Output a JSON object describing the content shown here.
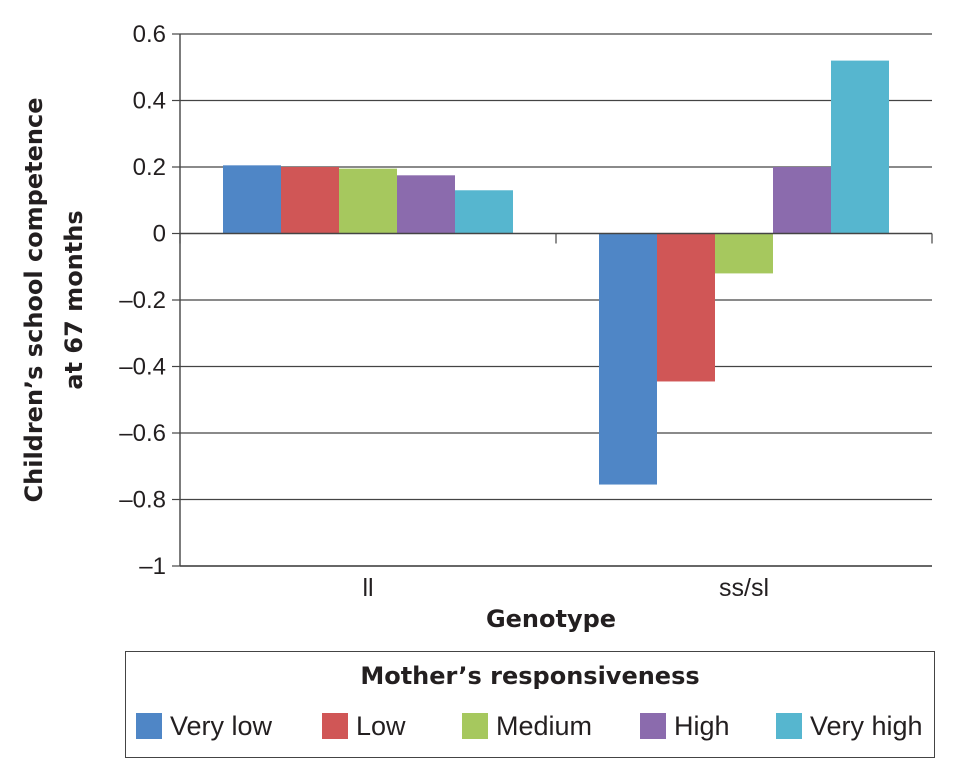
{
  "chart_data": {
    "type": "bar",
    "title": "",
    "xlabel": "Genotype",
    "ylabel_lines": [
      "Children’s school competence",
      "at 67 months"
    ],
    "categories": [
      "ll",
      "ss/sl"
    ],
    "ylim": [
      -1,
      0.6
    ],
    "yticks": [
      0.6,
      0.4,
      0.2,
      0,
      -0.2,
      -0.4,
      -0.6,
      -0.8,
      -1
    ],
    "ytick_labels": [
      "0.6",
      "0.4",
      "0.2",
      "0",
      "–0.2",
      "–0.4",
      "–0.6",
      "–0.8",
      "–1"
    ],
    "grid": true,
    "legend_title": "Mother’s responsiveness",
    "legend_position": "bottom",
    "series": [
      {
        "name": "Very low",
        "color": "#4f86c6",
        "values": [
          0.205,
          -0.755
        ]
      },
      {
        "name": "Low",
        "color": "#d05656",
        "values": [
          0.2,
          -0.445
        ]
      },
      {
        "name": "Medium",
        "color": "#a6c85e",
        "values": [
          0.195,
          -0.12
        ]
      },
      {
        "name": "High",
        "color": "#8b6bad",
        "values": [
          0.175,
          0.2
        ]
      },
      {
        "name": "Very high",
        "color": "#56b6cf",
        "values": [
          0.13,
          0.52
        ]
      }
    ]
  }
}
